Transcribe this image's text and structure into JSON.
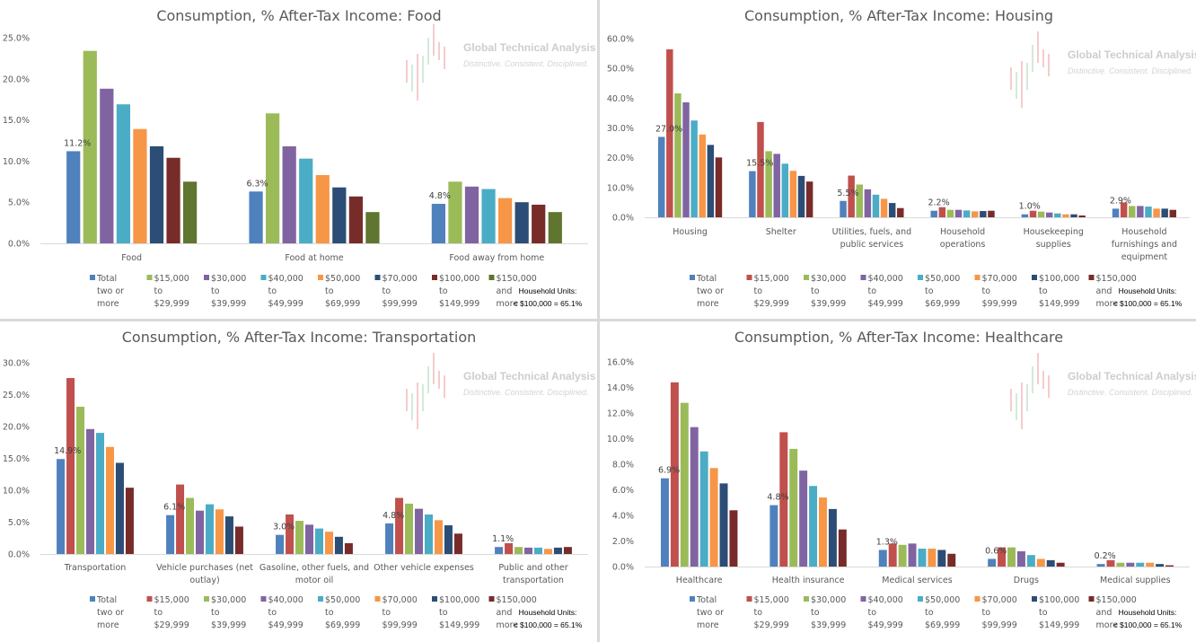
{
  "legend_groups": {
    "food": [
      "Total two or more",
      "$15,000 to $29,999",
      "$30,000 to $39,999",
      "$40,000 to $49,999",
      "$50,000 to $69,999",
      "$70,000 to $99,999",
      "$100,000 to $149,999",
      "$150,000 and more"
    ],
    "standard": [
      "Total two or more",
      "$15,000 to $29,999",
      "$30,000 to $39,999",
      "$40,000 to $49,999",
      "$50,000 to $69,999",
      "$70,000 to $99,999",
      "$100,000 to $149,999",
      "$150,000 and more"
    ]
  },
  "watermark": {
    "name": "Global Technical Analysis",
    "tagline": "Distinctive. Consistent.  Disciplined."
  },
  "note": {
    "line1": "Household Units:",
    "line2": "< $100,000 = 65.1%"
  },
  "chart_data": [
    {
      "id": "food",
      "type": "bar",
      "title": "Consumption, % After-Tax Income: Food",
      "xlabel": "",
      "ylabel": "",
      "ylim": [
        0,
        25
      ],
      "yticks": [
        "0.0%",
        "5.0%",
        "10.0%",
        "15.0%",
        "20.0%",
        "25.0%"
      ],
      "ytick_values": [
        0,
        5,
        10,
        15,
        20,
        25
      ],
      "grid": false,
      "legend_position": "bottom",
      "categories": [
        "Food",
        "Food at home",
        "Food away from home"
      ],
      "category_lines": [
        [
          "Food"
        ],
        [
          "Food at home"
        ],
        [
          "Food away from home"
        ]
      ],
      "series": [
        {
          "name": "Total two or more",
          "color": "#4f81bd",
          "values": [
            11.2,
            6.3,
            4.8
          ]
        },
        {
          "name": "$15,000 to $29,999",
          "color": "#9bbb59",
          "values": [
            23.4,
            15.8,
            7.5
          ]
        },
        {
          "name": "$30,000 to $39,999",
          "color": "#8064a2",
          "values": [
            18.8,
            11.8,
            6.9
          ]
        },
        {
          "name": "$40,000 to $49,999",
          "color": "#4bacc6",
          "values": [
            16.9,
            10.3,
            6.6
          ]
        },
        {
          "name": "$50,000 to $69,999",
          "color": "#f79646",
          "values": [
            13.9,
            8.3,
            5.5
          ]
        },
        {
          "name": "$70,000 to $99,999",
          "color": "#2c4d75",
          "values": [
            11.8,
            6.8,
            5.0
          ]
        },
        {
          "name": "$100,000 to $149,999",
          "color": "#772c2a",
          "values": [
            10.4,
            5.7,
            4.7
          ]
        },
        {
          "name": "$150,000 and more",
          "color": "#5f7530",
          "values": [
            7.5,
            3.8,
            3.8
          ]
        }
      ],
      "data_labels": [
        "11.2%",
        "6.3%",
        "4.8%"
      ]
    },
    {
      "id": "housing",
      "type": "bar",
      "title": "Consumption, % After-Tax Income: Housing",
      "xlabel": "",
      "ylabel": "",
      "ylim": [
        0,
        60
      ],
      "yticks": [
        "0.0%",
        "10.0%",
        "20.0%",
        "30.0%",
        "40.0%",
        "50.0%",
        "60.0%"
      ],
      "ytick_values": [
        0,
        10,
        20,
        30,
        40,
        50,
        60
      ],
      "grid": false,
      "legend_position": "bottom",
      "categories": [
        "Housing",
        "Shelter",
        "Utilities, fuels, and public services",
        "Household operations",
        "Housekeeping supplies",
        "Household furnishings and equipment"
      ],
      "category_lines": [
        [
          "Housing"
        ],
        [
          "Shelter"
        ],
        [
          "Utilities, fuels, and",
          "public services"
        ],
        [
          "Household",
          "operations"
        ],
        [
          "Housekeeping",
          "supplies"
        ],
        [
          "Household",
          "furnishings and",
          "equipment"
        ]
      ],
      "series": [
        {
          "name": "Total two or more",
          "color": "#4f81bd",
          "values": [
            27.0,
            15.5,
            5.5,
            2.2,
            1.0,
            2.9
          ]
        },
        {
          "name": "$15,000 to $29,999",
          "color": "#c0504d",
          "values": [
            56.4,
            32.0,
            14.0,
            3.4,
            2.2,
            5.0
          ]
        },
        {
          "name": "$30,000 to $39,999",
          "color": "#9bbb59",
          "values": [
            41.6,
            22.2,
            11.0,
            2.5,
            1.9,
            3.8
          ]
        },
        {
          "name": "$40,000 to $49,999",
          "color": "#8064a2",
          "values": [
            38.6,
            21.3,
            9.4,
            2.5,
            1.6,
            3.8
          ]
        },
        {
          "name": "$50,000 to $69,999",
          "color": "#4bacc6",
          "values": [
            32.5,
            18.0,
            7.6,
            2.3,
            1.3,
            3.6
          ]
        },
        {
          "name": "$70,000 to $99,999",
          "color": "#f79646",
          "values": [
            27.8,
            15.6,
            6.2,
            2.0,
            1.0,
            2.9
          ]
        },
        {
          "name": "$100,000 to $149,999",
          "color": "#2c4d75",
          "values": [
            24.3,
            13.9,
            4.8,
            2.1,
            1.0,
            2.9
          ]
        },
        {
          "name": "$150,000 and more",
          "color": "#772c2a",
          "values": [
            20.1,
            12.0,
            3.1,
            2.2,
            0.6,
            2.5
          ]
        }
      ],
      "data_labels": [
        "27.0%",
        "15.5%",
        "5.5%",
        "2.2%",
        "1.0%",
        "2.9%"
      ]
    },
    {
      "id": "transportation",
      "type": "bar",
      "title": "Consumption, % After-Tax Income: Transportation",
      "xlabel": "",
      "ylabel": "",
      "ylim": [
        0,
        30
      ],
      "yticks": [
        "0.0%",
        "5.0%",
        "10.0%",
        "15.0%",
        "20.0%",
        "25.0%",
        "30.0%"
      ],
      "ytick_values": [
        0,
        5,
        10,
        15,
        20,
        25,
        30
      ],
      "grid": false,
      "legend_position": "bottom",
      "categories": [
        "Transportation",
        "Vehicle purchases (net outlay)",
        "Gasoline, other fuels, and motor oil",
        "Other vehicle expenses",
        "Public and other transportation"
      ],
      "category_lines": [
        [
          "Transportation"
        ],
        [
          "Vehicle purchases (net",
          "outlay)"
        ],
        [
          "Gasoline, other fuels, and",
          "motor oil"
        ],
        [
          "Other vehicle expenses"
        ],
        [
          "Public and other",
          "transportation"
        ]
      ],
      "series": [
        {
          "name": "Total two or more",
          "color": "#4f81bd",
          "values": [
            14.9,
            6.1,
            3.0,
            4.8,
            1.1
          ]
        },
        {
          "name": "$15,000 to $29,999",
          "color": "#c0504d",
          "values": [
            27.6,
            10.9,
            6.2,
            8.8,
            1.7
          ]
        },
        {
          "name": "$30,000 to $39,999",
          "color": "#9bbb59",
          "values": [
            23.1,
            8.8,
            5.2,
            7.9,
            1.1
          ]
        },
        {
          "name": "$40,000 to $49,999",
          "color": "#8064a2",
          "values": [
            19.6,
            6.8,
            4.6,
            7.1,
            1.0
          ]
        },
        {
          "name": "$50,000 to $69,999",
          "color": "#4bacc6",
          "values": [
            19.0,
            7.8,
            4.0,
            6.2,
            1.0
          ]
        },
        {
          "name": "$70,000 to $99,999",
          "color": "#f79646",
          "values": [
            16.8,
            7.0,
            3.5,
            5.3,
            0.8
          ]
        },
        {
          "name": "$100,000 to $149,999",
          "color": "#2c4d75",
          "values": [
            14.3,
            5.9,
            2.7,
            4.5,
            1.0
          ]
        },
        {
          "name": "$150,000 and more",
          "color": "#772c2a",
          "values": [
            10.4,
            4.3,
            1.7,
            3.2,
            1.1
          ]
        }
      ],
      "data_labels": [
        "14.9%",
        "6.1%",
        "3.0%",
        "4.8%",
        "1.1%"
      ]
    },
    {
      "id": "healthcare",
      "type": "bar",
      "title": "Consumption, % After-Tax Income: Healthcare",
      "xlabel": "",
      "ylabel": "",
      "ylim": [
        0,
        16
      ],
      "yticks": [
        "0.0%",
        "2.0%",
        "4.0%",
        "6.0%",
        "8.0%",
        "10.0%",
        "12.0%",
        "14.0%",
        "16.0%"
      ],
      "ytick_values": [
        0,
        2,
        4,
        6,
        8,
        10,
        12,
        14,
        16
      ],
      "grid": false,
      "legend_position": "bottom",
      "categories": [
        "Healthcare",
        "Health insurance",
        "Medical services",
        "Drugs",
        "Medical supplies"
      ],
      "category_lines": [
        [
          "Healthcare"
        ],
        [
          "Health insurance"
        ],
        [
          "Medical services"
        ],
        [
          "Drugs"
        ],
        [
          "Medical supplies"
        ]
      ],
      "series": [
        {
          "name": "Total two or more",
          "color": "#4f81bd",
          "values": [
            6.9,
            4.8,
            1.3,
            0.6,
            0.2
          ]
        },
        {
          "name": "$15,000 to $29,999",
          "color": "#c0504d",
          "values": [
            14.4,
            10.5,
            1.8,
            1.5,
            0.5
          ]
        },
        {
          "name": "$30,000 to $39,999",
          "color": "#9bbb59",
          "values": [
            12.8,
            9.2,
            1.7,
            1.5,
            0.3
          ]
        },
        {
          "name": "$40,000 to $49,999",
          "color": "#8064a2",
          "values": [
            10.9,
            7.5,
            1.8,
            1.2,
            0.3
          ]
        },
        {
          "name": "$50,000 to $69,999",
          "color": "#4bacc6",
          "values": [
            9.0,
            6.3,
            1.4,
            0.9,
            0.3
          ]
        },
        {
          "name": "$70,000 to $99,999",
          "color": "#f79646",
          "values": [
            7.7,
            5.4,
            1.4,
            0.6,
            0.3
          ]
        },
        {
          "name": "$100,000 to $149,999",
          "color": "#2c4d75",
          "values": [
            6.5,
            4.5,
            1.3,
            0.5,
            0.2
          ]
        },
        {
          "name": "$150,000 and more",
          "color": "#772c2a",
          "values": [
            4.4,
            2.9,
            1.0,
            0.3,
            0.1
          ]
        }
      ],
      "data_labels": [
        "6.9%",
        "4.8%",
        "1.3%",
        "0.6%",
        "0.2%"
      ]
    }
  ]
}
